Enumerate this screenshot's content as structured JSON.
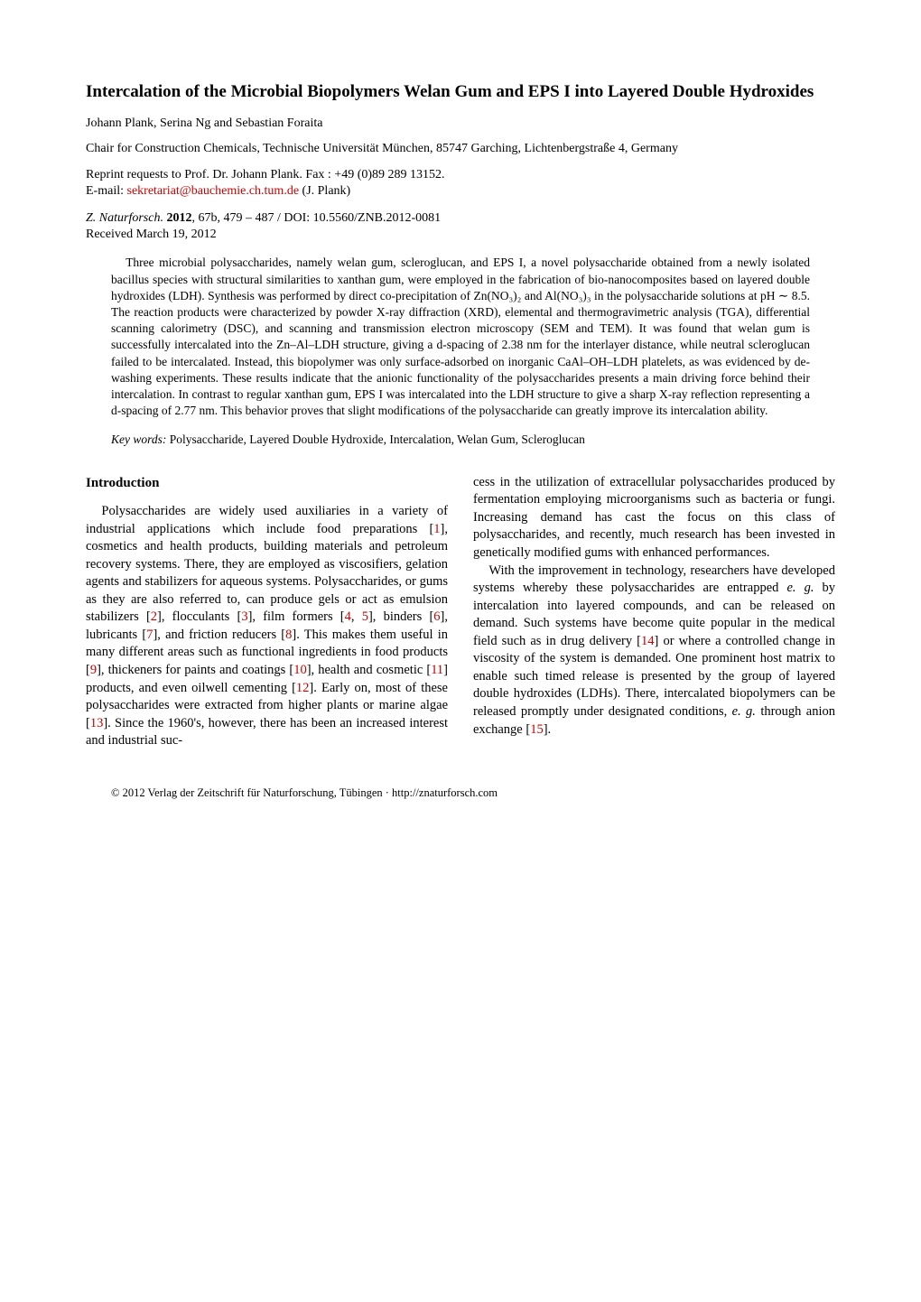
{
  "title": "Intercalation of the Microbial Biopolymers Welan Gum and EPS I into Layered Double Hydroxides",
  "authors": "Johann Plank, Serina Ng and Sebastian Foraita",
  "affiliation": "Chair for Construction Chemicals, Technische Universität München, 85747 Garching, Lichtenbergstraße 4, Germany",
  "reprint": "Reprint requests to Prof. Dr. Johann Plank. Fax : +49 (0)89 289 13152.",
  "email_prefix": "E-mail: ",
  "email_link": "sekretariat@bauchemie.ch.tum.de",
  "email_suffix": " (J. Plank)",
  "citation": {
    "journal": "Z. Naturforsch.",
    "year_bold": " 2012",
    "rest": ", 67b, 479 – 487 / DOI: 10.5560/ZNB.2012-0081"
  },
  "received": "Received March 19, 2012",
  "abstract": "Three microbial polysaccharides, namely welan gum, scleroglucan, and EPS I, a novel polysaccharide obtained from a newly isolated bacillus species with structural similarities to xanthan gum, were employed in the fabrication of bio-nanocomposites based on layered double hydroxides (LDH). Synthesis was performed by direct co-precipitation of Zn(NO₃)₂ and Al(NO₃)₃ in the polysaccharide solutions at pH ∼ 8.5. The reaction products were characterized by powder X-ray diffraction (XRD), elemental and thermogravimetric analysis (TGA), differential scanning calorimetry (DSC), and scanning and transmission electron microscopy (SEM and TEM). It was found that welan gum is successfully intercalated into the Zn–Al–LDH structure, giving a d-spacing of 2.38 nm for the interlayer distance, while neutral scleroglucan failed to be intercalated. Instead, this biopolymer was only surface-adsorbed on inorganic CaAl–OH–LDH platelets, as was evidenced by de-washing experiments. These results indicate that the anionic functionality of the polysaccharides presents a main driving force behind their intercalation. In contrast to regular xanthan gum, EPS I was intercalated into the LDH structure to give a sharp X-ray reflection representing a d-spacing of 2.77 nm. This behavior proves that slight modifications of the polysaccharide can greatly improve its intercalation ability.",
  "keywords_label": "Key words:",
  "keywords_text": " Polysaccharide, Layered Double Hydroxide, Intercalation, Welan Gum, Scleroglucan",
  "section_heading": "Introduction",
  "body": {
    "left": {
      "p1a": "Polysaccharides are widely used auxiliaries in a variety of industrial applications which include food preparations [",
      "r1": "1",
      "p1b": "], cosmetics and health products, building materials and petroleum recovery systems. There, they are employed as viscosifiers, gelation agents and stabilizers for aqueous systems. Polysaccharides, or gums as they are also referred to, can produce gels or act as emulsion stabilizers [",
      "r2": "2",
      "p1c": "], flocculants [",
      "r3": "3",
      "p1d": "], film formers [",
      "r4": "4",
      "p1e": ", ",
      "r5": "5",
      "p1f": "], binders [",
      "r6": "6",
      "p1g": "], lubricants [",
      "r7": "7",
      "p1h": "], and friction reducers [",
      "r8": "8",
      "p1i": "]. This makes them useful in many different areas such as functional ingredients in food products [",
      "r9": "9",
      "p1j": "], thickeners for paints and coatings [",
      "r10": "10",
      "p1k": "], health and cosmetic [",
      "r11": "11",
      "p1l": "] products, and even oilwell cementing [",
      "r12": "12",
      "p1m": "]. Early on, most of these polysaccharides were extracted from higher plants or marine algae [",
      "r13": "13",
      "p1n": "]. Since the 1960's, however, there has been an increased interest and industrial suc-"
    },
    "right": {
      "p1": "cess in the utilization of extracellular polysaccharides produced by fermentation employing microorganisms such as bacteria or fungi. Increasing demand has cast the focus on this class of polysaccharides, and recently, much research has been invested in genetically modified gums with enhanced performances.",
      "p2a": "With the improvement in technology, researchers have developed systems whereby these polysaccharides are entrapped ",
      "eg1": "e. g.",
      "p2b": " by intercalation into layered compounds, and can be released on demand. Such systems have become quite popular in the medical field such as in drug delivery [",
      "r14": "14",
      "p2c": "] or where a controlled change in viscosity of the system is demanded. One prominent host matrix to enable such timed release is presented by the group of layered double hydroxides (LDHs). There, intercalated biopolymers can be released promptly under designated conditions, ",
      "eg2": "e. g.",
      "p2d": " through anion exchange [",
      "r15": "15",
      "p2e": "]."
    }
  },
  "footer": "© 2012 Verlag der Zeitschrift für Naturforschung, Tübingen · http://znaturforsch.com",
  "colors": {
    "link": "#cc0000",
    "text": "#000000",
    "bg": "#ffffff"
  }
}
